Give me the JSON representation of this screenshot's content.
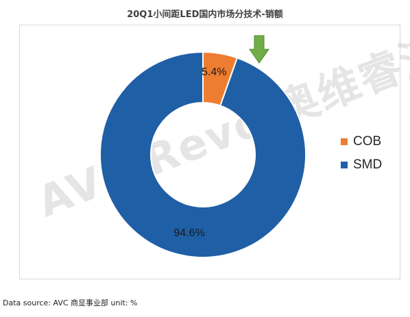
{
  "title": "20Q1小间距LED国内市场分技术-销额",
  "watermark": "AVC Revo|奥维睿沃",
  "footer": "Data source: AVC 商显事业部 unit: %",
  "colors": {
    "cob": "#ED7D31",
    "smd": "#1F5FA6",
    "arrow": "#70AD47"
  },
  "chart_data": {
    "type": "pie",
    "variant": "donut",
    "title": "20Q1小间距LED国内市场分技术-销额",
    "categories": [
      "COB",
      "SMD"
    ],
    "values": [
      5.4,
      94.6
    ],
    "labels": [
      "5.4%",
      "94.6%"
    ],
    "legend_position": "right",
    "unit": "%"
  }
}
